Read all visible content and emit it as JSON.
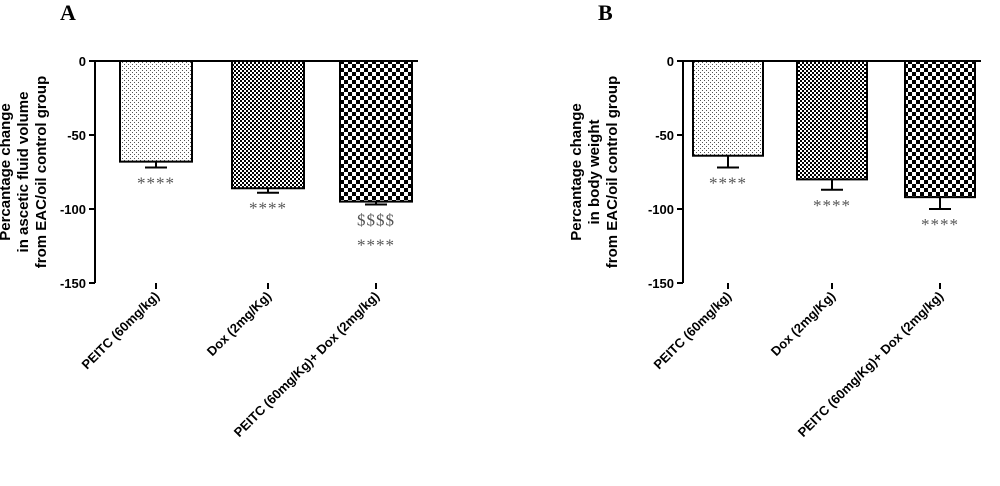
{
  "chart_data": [
    {
      "panel": "A",
      "type": "bar",
      "ylabel_lines": [
        "Percantage change",
        "in ascetic fluid volume",
        "from EAC/oil control group"
      ],
      "categories": [
        "PEITC (60mg/kg)",
        "Dox (2mg/Kg)",
        "PEITC (60mg/Kg)+ Dox (2mg/kg)"
      ],
      "values": [
        -68,
        -86,
        -95
      ],
      "errors": [
        4,
        3,
        2
      ],
      "patterns": [
        "dots",
        "fine-check",
        "check"
      ],
      "annotations": [
        [
          "****"
        ],
        [
          "****"
        ],
        [
          "$$$$",
          "****"
        ]
      ],
      "ylim": [
        -150,
        0
      ],
      "yticks": [
        0,
        -50,
        -100,
        -150
      ]
    },
    {
      "panel": "B",
      "type": "bar",
      "ylabel_lines": [
        "Percantage change",
        "in body weight",
        "from EAC/oil control group"
      ],
      "categories": [
        "PEITC (60mg/kg)",
        "Dox (2mg/Kg)",
        "PEITC (60mg/Kg)+ Dox (2mg/kg)"
      ],
      "values": [
        -64,
        -80,
        -92
      ],
      "errors": [
        8,
        7,
        8
      ],
      "patterns": [
        "dots",
        "fine-check",
        "check"
      ],
      "annotations": [
        [
          "****"
        ],
        [
          "****"
        ],
        [
          "****"
        ]
      ],
      "ylim": [
        -150,
        0
      ],
      "yticks": [
        0,
        -50,
        -100,
        -150
      ]
    }
  ]
}
